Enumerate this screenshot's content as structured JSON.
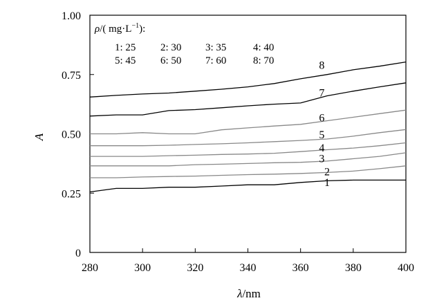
{
  "chart_data": {
    "type": "line",
    "xlabel_symbol": "λ",
    "xlabel_unit": "/nm",
    "ylabel": "A",
    "xlim": [
      280,
      400
    ],
    "ylim": [
      0,
      1.0
    ],
    "x_ticks": [
      280,
      300,
      320,
      340,
      360,
      380,
      400
    ],
    "y_ticks": [
      0,
      0.25,
      0.5,
      0.75,
      1.0
    ],
    "y_tick_labels": [
      "0",
      "0.25",
      "0.50",
      "0.75",
      "1.00"
    ],
    "grid": false,
    "legend": {
      "placement": "top-left",
      "title_symbol": "ρ",
      "title_rest": "/( mg·L",
      "title_sup": "−1",
      "title_end": "):",
      "entries": [
        "1: 25",
        "2: 30",
        "3: 35",
        "4: 40",
        "5: 45",
        "6: 50",
        "7: 60",
        "8: 70"
      ]
    },
    "x": [
      280,
      290,
      300,
      310,
      320,
      330,
      340,
      350,
      360,
      370,
      380,
      390,
      400
    ],
    "series": [
      {
        "label": "1",
        "color": "#000000",
        "values": [
          0.255,
          0.27,
          0.27,
          0.275,
          0.275,
          0.28,
          0.285,
          0.285,
          0.295,
          0.302,
          0.305,
          0.305,
          0.305
        ]
      },
      {
        "label": "2",
        "color": "#888888",
        "values": [
          0.315,
          0.315,
          0.318,
          0.32,
          0.322,
          0.325,
          0.328,
          0.33,
          0.333,
          0.337,
          0.343,
          0.353,
          0.365
        ]
      },
      {
        "label": "3",
        "color": "#888888",
        "values": [
          0.365,
          0.365,
          0.365,
          0.365,
          0.37,
          0.372,
          0.375,
          0.378,
          0.38,
          0.385,
          0.395,
          0.405,
          0.42
        ]
      },
      {
        "label": "4",
        "color": "#888888",
        "values": [
          0.405,
          0.405,
          0.405,
          0.408,
          0.41,
          0.413,
          0.415,
          0.418,
          0.425,
          0.433,
          0.44,
          0.45,
          0.462
        ]
      },
      {
        "label": "5",
        "color": "#888888",
        "values": [
          0.45,
          0.45,
          0.45,
          0.452,
          0.455,
          0.458,
          0.462,
          0.467,
          0.472,
          0.478,
          0.49,
          0.505,
          0.518
        ]
      },
      {
        "label": "6",
        "color": "#888888",
        "values": [
          0.5,
          0.5,
          0.505,
          0.5,
          0.5,
          0.517,
          0.525,
          0.533,
          0.54,
          0.555,
          0.57,
          0.585,
          0.6
        ]
      },
      {
        "label": "7",
        "color": "#000000",
        "values": [
          0.575,
          0.58,
          0.58,
          0.598,
          0.602,
          0.61,
          0.618,
          0.625,
          0.63,
          0.66,
          0.68,
          0.698,
          0.715
        ]
      },
      {
        "label": "8",
        "color": "#000000",
        "values": [
          0.655,
          0.662,
          0.668,
          0.672,
          0.68,
          0.688,
          0.698,
          0.712,
          0.732,
          0.75,
          0.77,
          0.785,
          0.803
        ]
      }
    ],
    "series_label_positions": [
      {
        "label": "1",
        "x": 369,
        "y": 0.295
      },
      {
        "label": "2",
        "x": 369,
        "y": 0.34
      },
      {
        "label": "3",
        "x": 367,
        "y": 0.395
      },
      {
        "label": "4",
        "x": 367,
        "y": 0.44
      },
      {
        "label": "5",
        "x": 367,
        "y": 0.495
      },
      {
        "label": "6",
        "x": 367,
        "y": 0.567
      },
      {
        "label": "7",
        "x": 367,
        "y": 0.672
      },
      {
        "label": "8",
        "x": 367,
        "y": 0.788
      }
    ]
  }
}
